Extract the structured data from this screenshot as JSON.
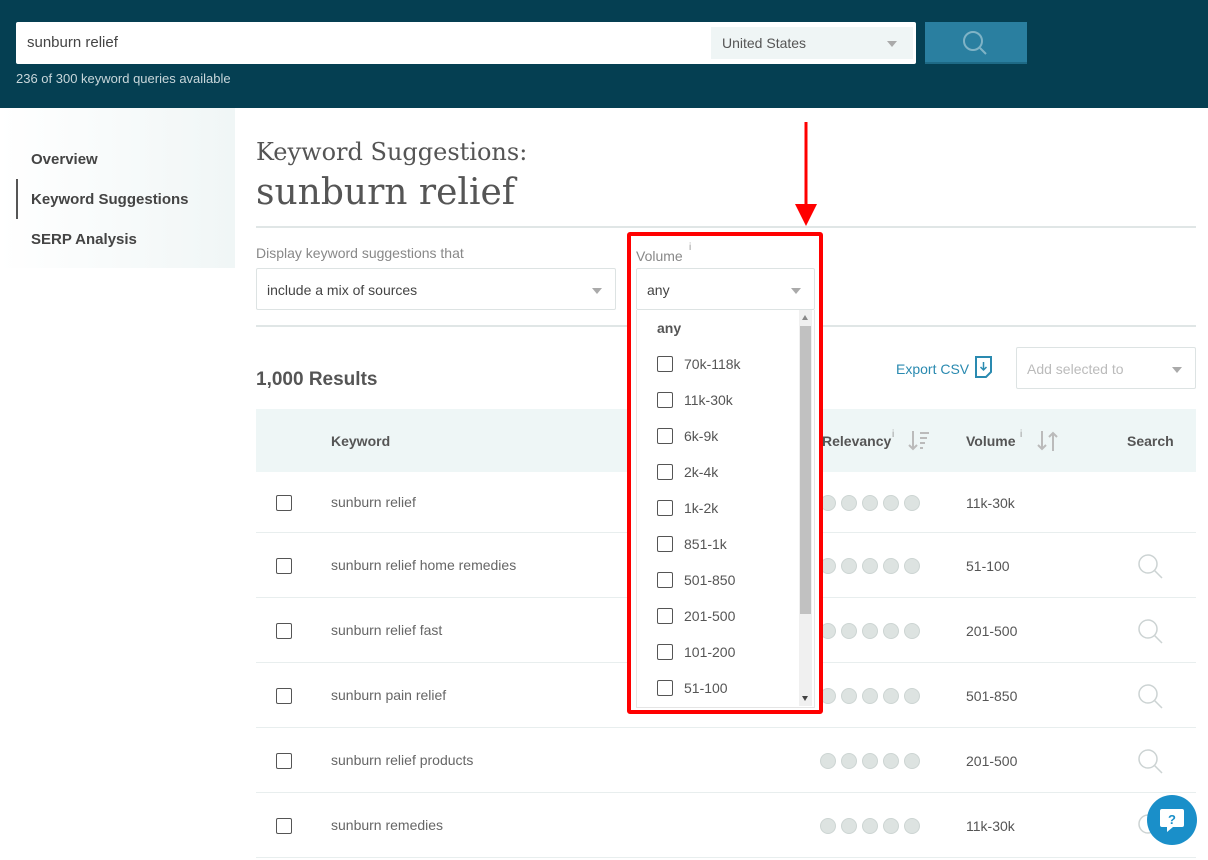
{
  "header": {
    "query": "sunburn relief",
    "country": "United States",
    "queries_available": "236 of 300 keyword queries available"
  },
  "sidebar": {
    "items": [
      {
        "label": "Overview"
      },
      {
        "label": "Keyword Suggestions",
        "active": true
      },
      {
        "label": "SERP Analysis"
      }
    ]
  },
  "main": {
    "title_prefix": "Keyword Suggestions:",
    "title": "sunburn relief",
    "filter_label": "Display keyword suggestions that",
    "filter_value": "include a mix of sources",
    "volume_label": "Volume",
    "info": "i",
    "volume_value": "any",
    "results": "1,000 Results",
    "export": "Export CSV",
    "add_placeholder": "Add selected to",
    "columns": {
      "keyword": "Keyword",
      "relevancy": "Relevancy",
      "volume": "Volume",
      "search": "Search"
    },
    "rows": [
      {
        "keyword": "sunburn relief",
        "volume": "11k-30k",
        "relevancy": 0
      },
      {
        "keyword": "sunburn relief home remedies",
        "volume": "51-100",
        "relevancy": 0
      },
      {
        "keyword": "sunburn relief fast",
        "volume": "201-500",
        "relevancy": 0
      },
      {
        "keyword": "sunburn pain relief",
        "volume": "501-850",
        "relevancy": 0
      },
      {
        "keyword": "sunburn relief products",
        "volume": "201-500",
        "relevancy": 0
      },
      {
        "keyword": "sunburn remedies",
        "volume": "11k-30k",
        "relevancy": 0
      }
    ]
  },
  "volume_dropdown": {
    "header": "any",
    "options": [
      "70k-118k",
      "11k-30k",
      "6k-9k",
      "2k-4k",
      "1k-2k",
      "851-1k",
      "501-850",
      "201-500",
      "101-200",
      "51-100"
    ]
  },
  "colors": {
    "header_bg": "#053f52",
    "accent": "#2a7fa0",
    "highlight": "#ff0000",
    "help": "#1a8fc9"
  }
}
